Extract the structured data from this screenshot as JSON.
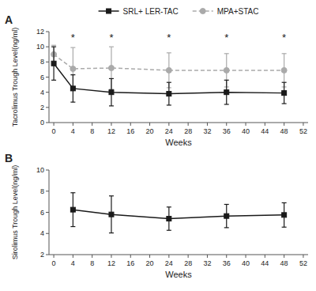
{
  "chart_data": [
    {
      "type": "line",
      "title": "A",
      "x": [
        0,
        4,
        12,
        24,
        36,
        48
      ],
      "series": [
        {
          "name": "SRL+ LER-TAC",
          "color": "#1a1a1a",
          "marker": "square",
          "line_style": "solid",
          "values": [
            7.8,
            4.5,
            4.0,
            3.8,
            4.0,
            3.9
          ],
          "errors": [
            2.2,
            1.8,
            1.8,
            1.5,
            1.6,
            1.4
          ]
        },
        {
          "name": "MPA+STAC",
          "color": "#aaaaaa",
          "marker": "circle",
          "line_style": "dashed",
          "values": [
            9.0,
            7.1,
            7.2,
            6.9,
            6.9,
            6.9
          ],
          "errors": [
            1.2,
            2.8,
            2.8,
            2.3,
            2.2,
            2.2
          ]
        }
      ],
      "annotations": [
        {
          "text": "*",
          "x": 4,
          "y": 11.3
        },
        {
          "text": "*",
          "x": 12,
          "y": 11.3
        },
        {
          "text": "*",
          "x": 24,
          "y": 11.3
        },
        {
          "text": "*",
          "x": 36,
          "y": 11.3
        },
        {
          "text": "*",
          "x": 48,
          "y": 11.3
        }
      ],
      "xlabel": "Weeks",
      "ylabel": "Tacrolimus Trough Level(ng/ml)",
      "xlim": [
        -1,
        53
      ],
      "ylim": [
        0,
        12
      ],
      "xticks": [
        0,
        4,
        8,
        12,
        16,
        20,
        24,
        28,
        32,
        36,
        40,
        44,
        48,
        52
      ],
      "yticks": [
        0,
        2,
        4,
        6,
        8,
        10,
        12
      ],
      "grid": false,
      "legend": "top"
    },
    {
      "type": "line",
      "title": "B",
      "x": [
        4,
        12,
        24,
        36,
        48
      ],
      "series": [
        {
          "color": "#1a1a1a",
          "marker": "square",
          "line_style": "solid",
          "values": [
            6.25,
            5.8,
            5.4,
            5.65,
            5.75
          ],
          "errors": [
            1.6,
            1.75,
            1.1,
            1.1,
            1.15
          ]
        }
      ],
      "xlabel": "Weeks",
      "ylabel": "Sirolimus Trough Level(ng/ml)",
      "xlim": [
        -1,
        53
      ],
      "ylim": [
        2,
        10
      ],
      "xticks": [
        0,
        4,
        8,
        12,
        16,
        20,
        24,
        28,
        32,
        36,
        40,
        44,
        48,
        52
      ],
      "yticks": [
        2,
        4,
        6,
        8,
        10
      ],
      "grid": false
    }
  ]
}
